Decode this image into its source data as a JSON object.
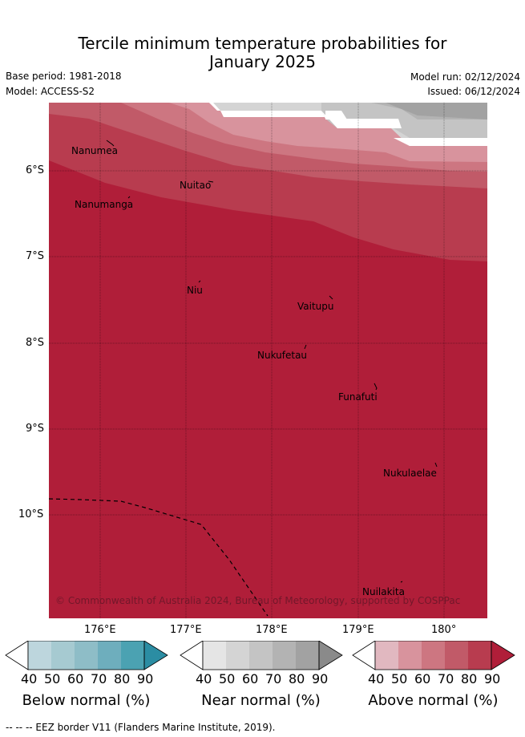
{
  "title": {
    "line1": "Tercile minimum temperature probabilities for",
    "line2": "January 2025"
  },
  "meta": {
    "base_period": "Base period: 1981-2018",
    "model": "Model: ACCESS-S2",
    "model_run": "Model run: 02/12/2024",
    "issued": "Issued: 06/12/2024"
  },
  "map": {
    "lon_range": [
      175.0,
      180.5
    ],
    "lat_range": [
      -5.7,
      -11.7
    ],
    "gridlines": true,
    "x_ticks": [
      "176°E",
      "177°E",
      "178°E",
      "179°E",
      "180°"
    ],
    "y_ticks": [
      "6°S",
      "7°S",
      "8°S",
      "9°S",
      "10°S"
    ],
    "places": [
      {
        "name": "Nanumea"
      },
      {
        "name": "Nuitao"
      },
      {
        "name": "Nanumanga"
      },
      {
        "name": "Niu"
      },
      {
        "name": "Vaitupu"
      },
      {
        "name": "Nukufetau"
      },
      {
        "name": "Funafuti"
      },
      {
        "name": "Nukulaelae"
      },
      {
        "name": "Nuilakita"
      }
    ],
    "copyright": "© Commonwealth of Australia 2024, Bureau of Meteorology, supported by COSPPac"
  },
  "colorbars": [
    {
      "title": "Below normal (%)",
      "ticks": [
        "40",
        "50",
        "60",
        "70",
        "80",
        "90"
      ],
      "colors": [
        "#bdd6dd",
        "#a6cad1",
        "#8ebdc7",
        "#6eaebd",
        "#4ba2b2",
        "#2b8da3"
      ]
    },
    {
      "title": "Near normal (%)",
      "ticks": [
        "40",
        "50",
        "60",
        "70",
        "80",
        "90"
      ],
      "colors": [
        "#e5e5e5",
        "#d4d4d4",
        "#c4c4c4",
        "#b3b3b3",
        "#a2a2a2",
        "#8a8a8a"
      ]
    },
    {
      "title": "Above normal (%)",
      "ticks": [
        "40",
        "50",
        "60",
        "70",
        "80",
        "90"
      ],
      "colors": [
        "#e1b8c0",
        "#d8939d",
        "#cd7681",
        "#c15a68",
        "#b83c4f",
        "#b01e39"
      ]
    }
  ],
  "footer": "--  --  -- EEZ border V11 (Flanders Marine Institute, 2019)."
}
